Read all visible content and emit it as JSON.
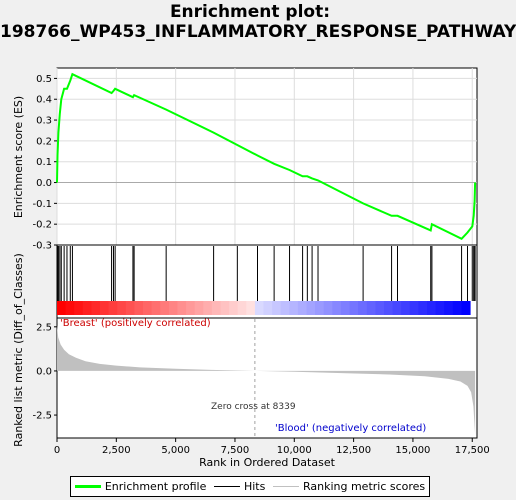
{
  "title": "Enrichment plot: 198766_WP453_INFLAMMATORY_RESPONSE_PATHWAY",
  "chart_data": {
    "type": "line",
    "title": "Enrichment plot: 198766_WP453_INFLAMMATORY_RESPONSE_PATHWAY",
    "xlabel": "Rank in Ordered Dataset",
    "ylabel_top": "Enrichment score (ES)",
    "ylabel_bottom": "Ranked list metric (Diff_of_Classes)",
    "xlim": [
      0,
      17700
    ],
    "x_ticks": [
      "0",
      "2,500",
      "5,000",
      "7,500",
      "10,000",
      "12,500",
      "15,000",
      "17,500"
    ],
    "x_tick_values": [
      0,
      2500,
      5000,
      7500,
      10000,
      12500,
      15000,
      17500
    ],
    "es_ylim": [
      -0.3,
      0.55
    ],
    "es_ticks": [
      "0.5",
      "0.4",
      "0.3",
      "0.2",
      "0.1",
      "0.0",
      "-0.1",
      "-0.2",
      "-0.3"
    ],
    "es_tick_values": [
      0.5,
      0.4,
      0.3,
      0.2,
      0.1,
      0.0,
      -0.1,
      -0.2,
      -0.3
    ],
    "metric_ylim": [
      -3.8,
      3.0
    ],
    "metric_ticks": [
      "2.5",
      "0.0",
      "-2.5"
    ],
    "metric_tick_values": [
      2.5,
      0.0,
      -2.5
    ],
    "hits": [
      20,
      60,
      120,
      180,
      300,
      420,
      560,
      650,
      2300,
      2380,
      2450,
      3200,
      3250,
      4600,
      6600,
      7600,
      8450,
      9150,
      9800,
      10350,
      10550,
      10750,
      11000,
      12900,
      14100,
      14350,
      15750,
      15800,
      17050,
      17300,
      17500,
      17560,
      17600,
      17620
    ],
    "enrichment_profile": {
      "name": "Enrichment profile",
      "x": [
        0,
        20,
        60,
        120,
        180,
        300,
        420,
        560,
        650,
        2300,
        2380,
        2450,
        3200,
        3250,
        4600,
        6600,
        7600,
        8450,
        9150,
        9800,
        10350,
        10550,
        10750,
        11000,
        12900,
        14100,
        14350,
        15750,
        15800,
        17050,
        17300,
        17500,
        17560,
        17600,
        17620
      ],
      "y": [
        0.0,
        0.13,
        0.24,
        0.33,
        0.4,
        0.45,
        0.45,
        0.49,
        0.52,
        0.43,
        0.44,
        0.45,
        0.41,
        0.42,
        0.35,
        0.24,
        0.18,
        0.13,
        0.09,
        0.06,
        0.03,
        0.03,
        0.02,
        0.01,
        -0.1,
        -0.16,
        -0.16,
        -0.23,
        -0.2,
        -0.27,
        -0.24,
        -0.21,
        -0.16,
        -0.09,
        0.0
      ]
    },
    "ranked_metric": {
      "name": "Ranking metric scores",
      "x": [
        0,
        50,
        150,
        300,
        500,
        800,
        1200,
        1800,
        2500,
        3500,
        5000,
        6500,
        8339,
        10000,
        12000,
        14000,
        15500,
        16500,
        17000,
        17300,
        17450,
        17550,
        17620
      ],
      "y": [
        2.6,
        1.9,
        1.5,
        1.2,
        0.95,
        0.75,
        0.55,
        0.4,
        0.3,
        0.2,
        0.12,
        0.06,
        0.0,
        -0.05,
        -0.12,
        -0.2,
        -0.3,
        -0.45,
        -0.6,
        -0.85,
        -1.2,
        -2.0,
        -3.6
      ]
    },
    "label_positive": "'Breast' (positively correlated)",
    "label_negative": "'Blood' (negatively correlated)",
    "zero_cross_label": "Zero cross at 8339",
    "zero_cross": 8339,
    "legend": [
      "Enrichment profile",
      "Hits",
      "Ranking metric scores"
    ],
    "colors": {
      "profile": "#00ff00",
      "hits": "#000000",
      "metric_fill": "#c0c0c0",
      "positive_label": "#cc0000",
      "negative_label": "#0000cc",
      "bar_red_strong": "#ff0000",
      "bar_blue_strong": "#0000ff"
    }
  }
}
